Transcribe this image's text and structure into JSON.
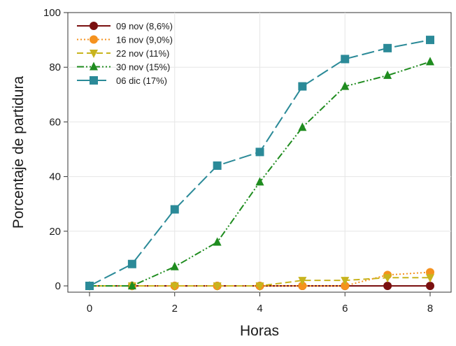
{
  "chart_data": {
    "type": "line",
    "title": "",
    "xlabel": "Horas",
    "ylabel": "Porcentaje de partidura",
    "xlim": [
      0,
      8
    ],
    "ylim": [
      0,
      100
    ],
    "xticks": [
      "0",
      "2",
      "4",
      "6",
      "8"
    ],
    "yticks": [
      "0",
      "20",
      "40",
      "60",
      "80",
      "100"
    ],
    "grid": true,
    "legend_position": "top-left",
    "x": [
      0,
      1,
      2,
      3,
      4,
      5,
      6,
      7,
      8
    ],
    "series": [
      {
        "name": "09 nov (8,6%)",
        "values": [
          0,
          0,
          0,
          0,
          0,
          0,
          0,
          0,
          0
        ],
        "color": "#7a1010",
        "marker": "circle",
        "dash": "solid"
      },
      {
        "name": "16 nov (9,0%)",
        "values": [
          0,
          0,
          0,
          0,
          0,
          0,
          0,
          4,
          5
        ],
        "color": "#f5921e",
        "marker": "circle",
        "dash": "dotted"
      },
      {
        "name": "22 nov (11%)",
        "values": [
          0,
          0,
          0,
          0,
          0,
          2,
          2,
          3,
          3
        ],
        "color": "#c8b41e",
        "marker": "triangle-down",
        "dash": "dashed"
      },
      {
        "name": "30 nov (15%)",
        "values": [
          0,
          0,
          7,
          16,
          38,
          58,
          73,
          77,
          82
        ],
        "color": "#1f8c1f",
        "marker": "triangle-up",
        "dash": "dash-dot-dot"
      },
      {
        "name": "06 dic (17%)",
        "values": [
          0,
          8,
          28,
          44,
          49,
          73,
          83,
          87,
          90
        ],
        "color": "#2b8a98",
        "marker": "square",
        "dash": "long-dash"
      }
    ]
  }
}
